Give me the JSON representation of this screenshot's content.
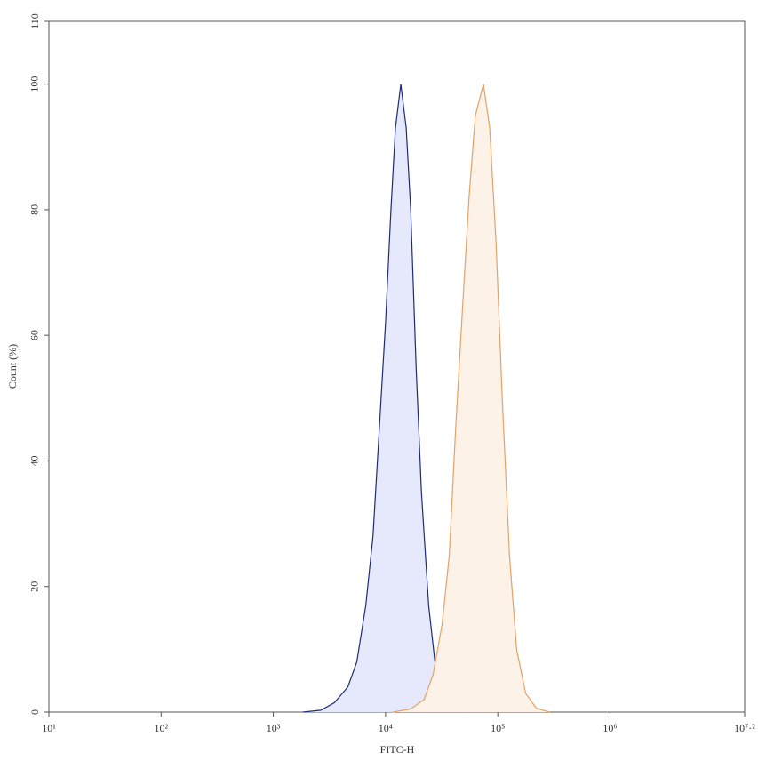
{
  "chart_data": {
    "type": "histogram-overlay",
    "xlabel": "FITC-H",
    "ylabel": "Count (%)",
    "xscale": "log",
    "xlim": [
      10,
      15848932
    ],
    "ylim": [
      0,
      110
    ],
    "xticks": [
      {
        "value": 10,
        "label": "10¹"
      },
      {
        "value": 100,
        "label": "10²"
      },
      {
        "value": 1000,
        "label": "10³"
      },
      {
        "value": 10000,
        "label": "10⁴"
      },
      {
        "value": 100000,
        "label": "10⁵"
      },
      {
        "value": 1000000,
        "label": "10⁶"
      },
      {
        "value": 15848932,
        "label": "10⁷·²"
      }
    ],
    "yticks": [
      0,
      20,
      40,
      60,
      80,
      100,
      110
    ],
    "series": [
      {
        "color": "#1f2a7a",
        "fill": "#e6e8fb",
        "x": [
          1837,
          2655,
          3500,
          4613,
          5546,
          6668,
          7727,
          8790,
          10000,
          11170,
          12250,
          13680,
          15280,
          16750,
          18710,
          20890,
          24210,
          27540,
          31920,
          38370,
          50580
        ],
        "values": [
          0,
          0.3,
          1.5,
          4,
          8,
          17,
          28,
          45,
          62,
          80,
          93,
          100,
          93,
          80,
          55,
          35,
          17,
          8,
          3,
          0.8,
          0
        ]
      },
      {
        "color": "#e3a266",
        "fill": "#fdf2e7",
        "x": [
          11590,
          16750,
          22080,
          26550,
          31920,
          36980,
          42070,
          48750,
          55460,
          63100,
          74470,
          84720,
          96380,
          109600,
          127100,
          147200,
          177000,
          220800,
          291100
        ],
        "values": [
          0,
          0.5,
          2,
          6,
          14,
          25,
          45,
          65,
          82,
          95,
          100,
          93,
          75,
          50,
          25,
          10,
          3,
          0.6,
          0
        ]
      }
    ]
  }
}
